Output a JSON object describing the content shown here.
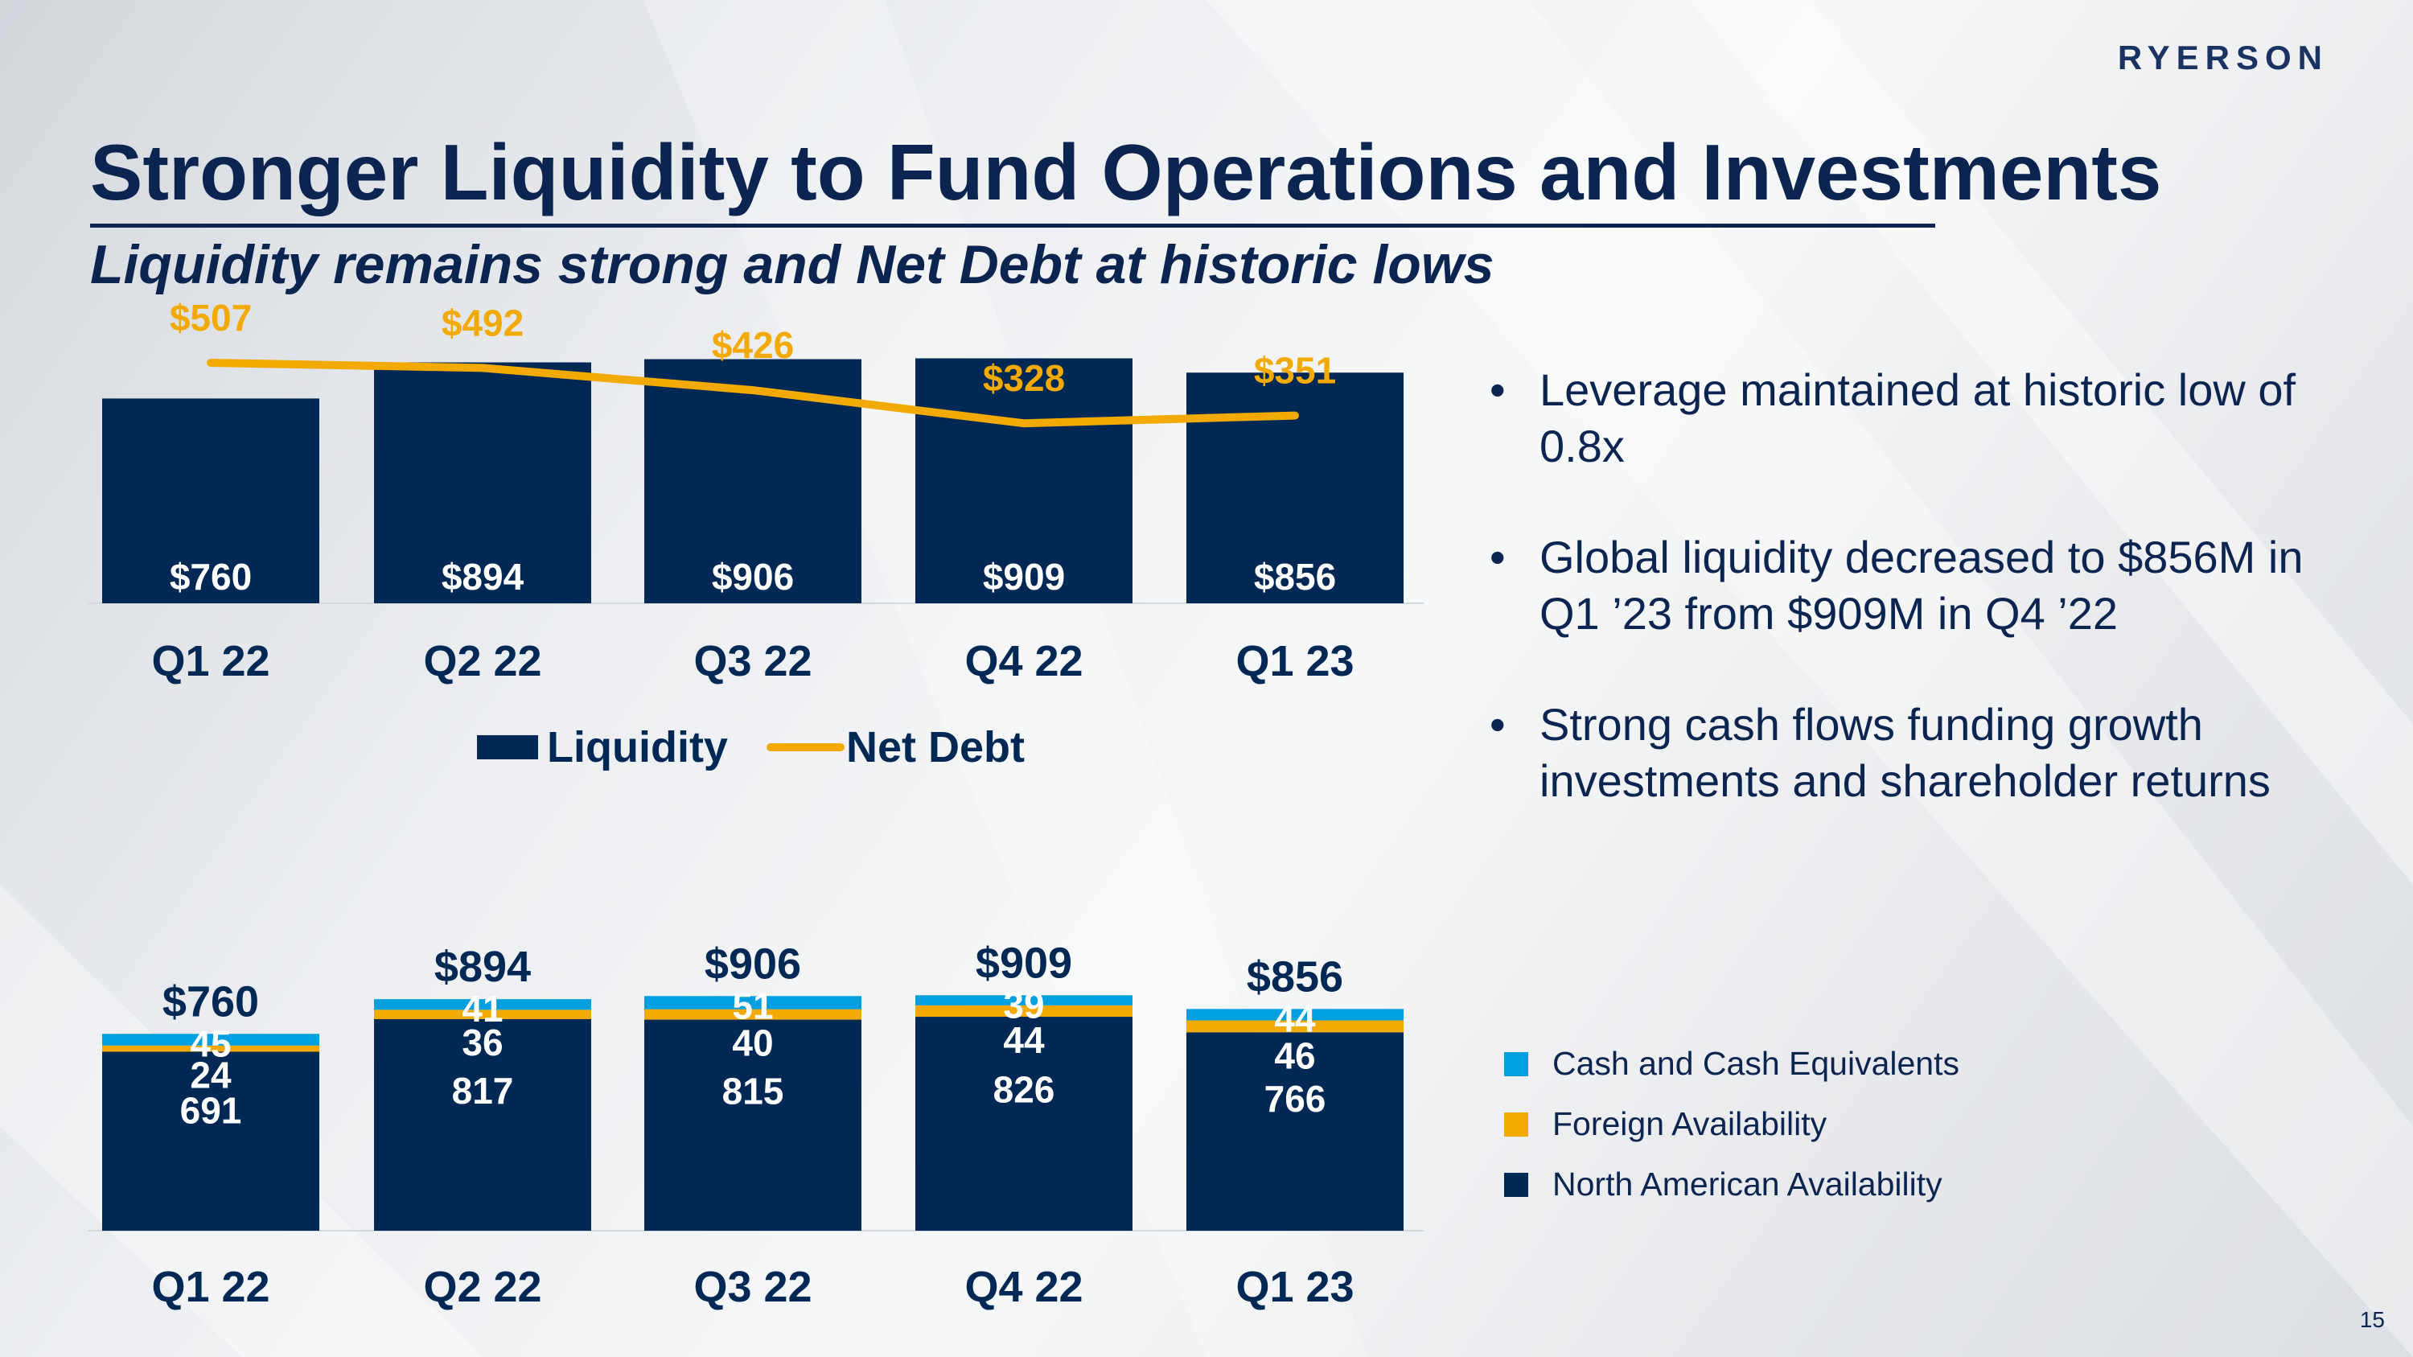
{
  "logo": "RYERSON",
  "title": "Stronger Liquidity to Fund Operations and Investments",
  "subtitle": "Liquidity remains strong and Net Debt at historic lows",
  "bullets": [
    "Leverage maintained at historic low of 0.8x",
    "Global liquidity decreased to $856M in Q1 ’23 from $909M in Q4 ’22",
    "Strong cash flows funding growth investments and shareholder returns"
  ],
  "page_number": "15",
  "colors": {
    "navy": "#002855",
    "gold": "#f2a900",
    "light_blue": "#009fdf",
    "title_blue": "#0b2450"
  },
  "chart_data": [
    {
      "type": "bar",
      "categories": [
        "Q1 22",
        "Q2 22",
        "Q3 22",
        "Q4 22",
        "Q1 23"
      ],
      "series": [
        {
          "name": "Liquidity",
          "type": "bar",
          "values": [
            760,
            894,
            906,
            909,
            856
          ],
          "labels": [
            "$760",
            "$894",
            "$906",
            "$909",
            "$856"
          ]
        },
        {
          "name": "Net Debt",
          "type": "line",
          "values": [
            507,
            492,
            426,
            328,
            351
          ],
          "labels": [
            "$507",
            "$492",
            "$426",
            "$328",
            "$351"
          ]
        }
      ],
      "legend": "bottom"
    },
    {
      "type": "bar",
      "stacked": true,
      "categories": [
        "Q1 22",
        "Q2 22",
        "Q3 22",
        "Q4 22",
        "Q1 23"
      ],
      "series": [
        {
          "name": "North American Availability",
          "values": [
            691,
            817,
            815,
            826,
            766
          ]
        },
        {
          "name": "Foreign Availability",
          "values": [
            24,
            36,
            40,
            44,
            46
          ]
        },
        {
          "name": "Cash and Cash Equivalents",
          "values": [
            45,
            41,
            51,
            39,
            44
          ]
        }
      ],
      "totals": [
        "$760",
        "$894",
        "$906",
        "$909",
        "$856"
      ],
      "legend": "right"
    }
  ]
}
